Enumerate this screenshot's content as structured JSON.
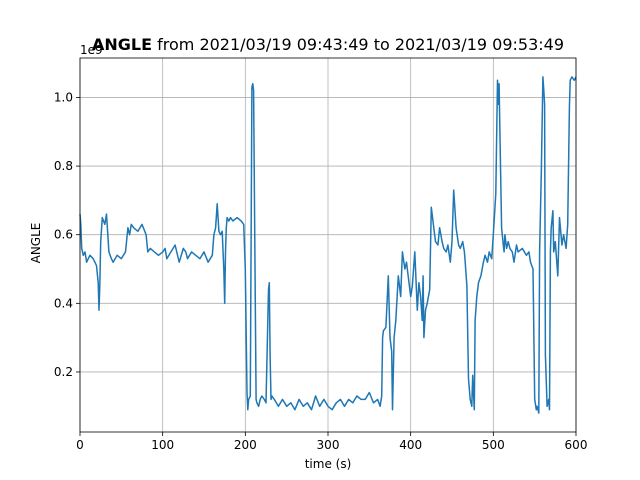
{
  "chart_data": {
    "type": "line",
    "title_bold": "ANGLE",
    "title_rest": " from 2021/03/19 09:43:49 to 2021/03/19 09:53:49",
    "xlabel": "time (s)",
    "ylabel": "ANGLE",
    "y_offset_label": "1e9",
    "xlim": [
      0,
      600
    ],
    "ylim": [
      0.025,
      1.115
    ],
    "x_ticks": [
      0,
      100,
      200,
      300,
      400,
      500,
      600
    ],
    "x_tick_labels": [
      "0",
      "100",
      "200",
      "300",
      "400",
      "500",
      "600"
    ],
    "y_ticks": [
      0.2,
      0.4,
      0.6,
      0.8,
      1.0
    ],
    "y_tick_labels": [
      "0.2",
      "0.4",
      "0.6",
      "0.8",
      "1.0"
    ],
    "grid": true,
    "line_color": "#1f77b4",
    "series": [
      {
        "x": [
          0,
          1,
          2,
          4,
          6,
          8,
          12,
          16,
          20,
          22,
          23,
          24,
          25,
          27,
          30,
          32,
          35,
          38,
          40,
          45,
          50,
          55,
          58,
          60,
          62,
          65,
          70,
          75,
          80,
          82,
          85,
          90,
          95,
          100,
          103,
          105,
          110,
          115,
          120,
          125,
          128,
          130,
          135,
          140,
          145,
          150,
          155,
          160,
          162,
          164,
          166,
          168,
          170,
          172,
          174,
          175,
          176,
          177,
          178,
          180,
          182,
          185,
          190,
          195,
          198,
          200,
          202,
          203,
          204,
          206,
          208,
          209,
          210,
          212,
          213,
          214,
          216,
          218,
          220,
          223,
          225,
          228,
          229,
          230,
          231,
          232,
          235,
          240,
          245,
          250,
          255,
          260,
          265,
          270,
          275,
          280,
          285,
          290,
          295,
          300,
          305,
          310,
          315,
          320,
          325,
          330,
          335,
          340,
          345,
          350,
          355,
          360,
          363,
          365,
          366,
          367,
          370,
          373,
          375,
          377,
          378,
          380,
          382,
          385,
          388,
          390,
          393,
          395,
          398,
          400,
          402,
          405,
          408,
          410,
          412,
          414,
          415,
          416,
          418,
          420,
          423,
          425,
          428,
          430,
          433,
          435,
          438,
          440,
          443,
          445,
          448,
          450,
          452,
          455,
          458,
          460,
          463,
          465,
          466,
          468,
          470,
          472,
          474,
          475,
          477,
          478,
          480,
          482,
          485,
          488,
          490,
          493,
          495,
          498,
          500,
          503,
          505,
          506,
          507,
          508,
          510,
          512,
          513,
          514,
          516,
          518,
          520,
          523,
          525,
          528,
          530,
          535,
          540,
          543,
          545,
          548,
          550,
          552,
          553,
          555,
          556,
          558,
          560,
          561,
          562,
          563,
          565,
          567,
          568,
          569,
          570,
          572,
          573,
          575,
          578,
          580,
          583,
          585,
          588,
          590,
          592,
          593,
          595,
          598,
          600
        ],
        "values": [
          0.66,
          0.63,
          0.56,
          0.54,
          0.55,
          0.52,
          0.54,
          0.53,
          0.51,
          0.46,
          0.38,
          0.45,
          0.58,
          0.65,
          0.63,
          0.66,
          0.55,
          0.53,
          0.52,
          0.54,
          0.53,
          0.55,
          0.62,
          0.6,
          0.63,
          0.62,
          0.61,
          0.63,
          0.6,
          0.55,
          0.56,
          0.55,
          0.54,
          0.55,
          0.56,
          0.53,
          0.55,
          0.57,
          0.52,
          0.56,
          0.55,
          0.53,
          0.55,
          0.54,
          0.53,
          0.55,
          0.52,
          0.54,
          0.6,
          0.62,
          0.69,
          0.61,
          0.6,
          0.61,
          0.5,
          0.4,
          0.55,
          0.62,
          0.65,
          0.64,
          0.65,
          0.64,
          0.65,
          0.64,
          0.63,
          0.5,
          0.14,
          0.09,
          0.12,
          0.13,
          1.03,
          1.04,
          1.02,
          0.4,
          0.12,
          0.11,
          0.1,
          0.12,
          0.13,
          0.12,
          0.11,
          0.44,
          0.46,
          0.25,
          0.12,
          0.13,
          0.12,
          0.1,
          0.12,
          0.1,
          0.11,
          0.09,
          0.12,
          0.1,
          0.11,
          0.09,
          0.13,
          0.1,
          0.12,
          0.1,
          0.09,
          0.11,
          0.12,
          0.1,
          0.12,
          0.11,
          0.13,
          0.12,
          0.12,
          0.14,
          0.11,
          0.12,
          0.1,
          0.13,
          0.3,
          0.32,
          0.33,
          0.48,
          0.3,
          0.26,
          0.09,
          0.3,
          0.35,
          0.48,
          0.42,
          0.55,
          0.5,
          0.52,
          0.46,
          0.42,
          0.45,
          0.55,
          0.38,
          0.46,
          0.42,
          0.35,
          0.48,
          0.3,
          0.38,
          0.4,
          0.44,
          0.68,
          0.62,
          0.58,
          0.57,
          0.62,
          0.58,
          0.56,
          0.55,
          0.57,
          0.52,
          0.58,
          0.73,
          0.62,
          0.57,
          0.56,
          0.58,
          0.55,
          0.52,
          0.45,
          0.18,
          0.12,
          0.1,
          0.19,
          0.09,
          0.35,
          0.42,
          0.46,
          0.48,
          0.52,
          0.54,
          0.52,
          0.55,
          0.53,
          0.6,
          0.72,
          1.05,
          0.98,
          1.04,
          0.9,
          0.62,
          0.57,
          0.55,
          0.6,
          0.56,
          0.58,
          0.56,
          0.55,
          0.52,
          0.57,
          0.55,
          0.56,
          0.54,
          0.55,
          0.52,
          0.5,
          0.12,
          0.09,
          0.1,
          0.08,
          0.55,
          0.78,
          1.06,
          1.02,
          0.98,
          0.25,
          0.1,
          0.12,
          0.09,
          0.55,
          0.62,
          0.67,
          0.55,
          0.58,
          0.48,
          0.65,
          0.57,
          0.6,
          0.56,
          0.63,
          0.97,
          1.05,
          1.06,
          1.05,
          1.06
        ]
      }
    ]
  }
}
